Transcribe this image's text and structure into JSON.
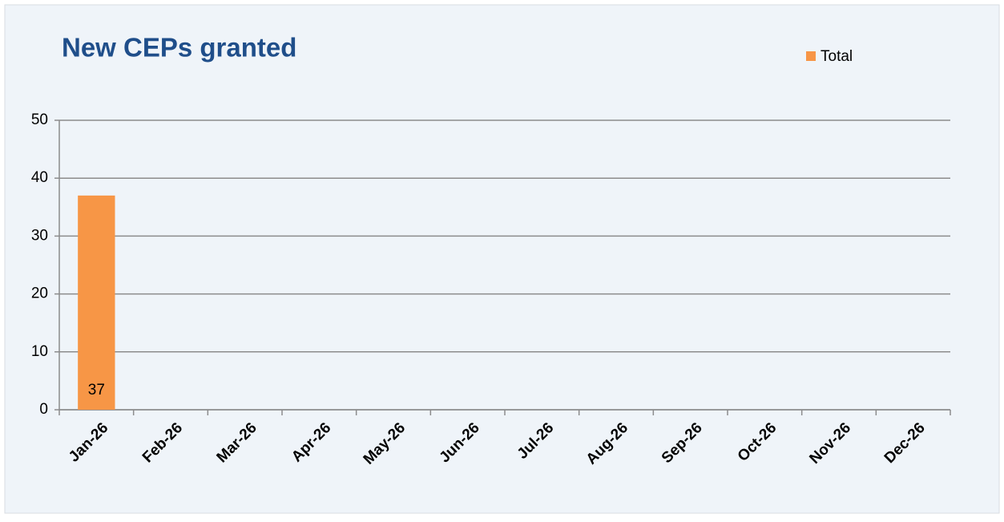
{
  "chart_data": {
    "type": "bar",
    "title": "New CEPs granted",
    "categories": [
      "Jan-26",
      "Feb-26",
      "Mar-26",
      "Apr-26",
      "May-26",
      "Jun-26",
      "Jul-26",
      "Aug-26",
      "Sep-26",
      "Oct-26",
      "Nov-26",
      "Dec-26"
    ],
    "series": [
      {
        "name": "Total",
        "color": "#f79646",
        "values": [
          37,
          null,
          null,
          null,
          null,
          null,
          null,
          null,
          null,
          null,
          null,
          null
        ]
      }
    ],
    "ylim": [
      0,
      50
    ],
    "yticks": [
      0,
      10,
      20,
      30,
      40,
      50
    ],
    "grid": true,
    "legend": "top-right"
  }
}
